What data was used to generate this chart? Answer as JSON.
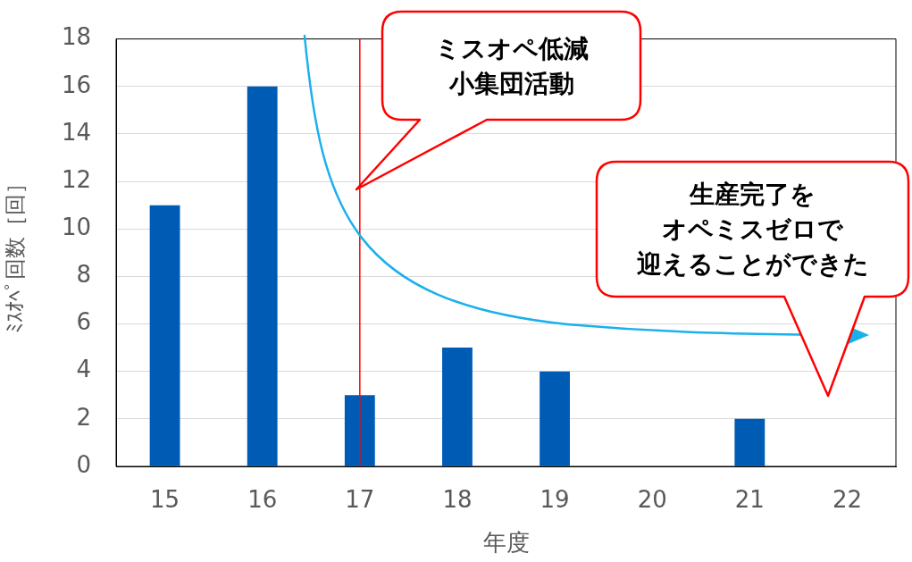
{
  "chart_data": {
    "type": "bar",
    "xlabel": "年度",
    "ylabel": "ﾐｽｵﾍﾟ回数［回］",
    "categories": [
      "15",
      "16",
      "17",
      "18",
      "19",
      "20",
      "21",
      "22"
    ],
    "values": [
      11,
      16,
      3,
      5,
      4,
      0,
      2,
      0
    ],
    "color": "#005bb5",
    "ylim": [
      0,
      18
    ],
    "yticks": [
      0,
      2,
      4,
      6,
      8,
      10,
      12,
      14,
      16,
      18
    ],
    "grid": "y",
    "legend": false,
    "ref_lines": [
      {
        "axis": "x",
        "value": "17",
        "color": "#ff0000"
      }
    ],
    "annotations": [
      "ミスオペ低減小集団活動",
      "生産完了をオペミスゼロで迎えることができた"
    ]
  }
}
